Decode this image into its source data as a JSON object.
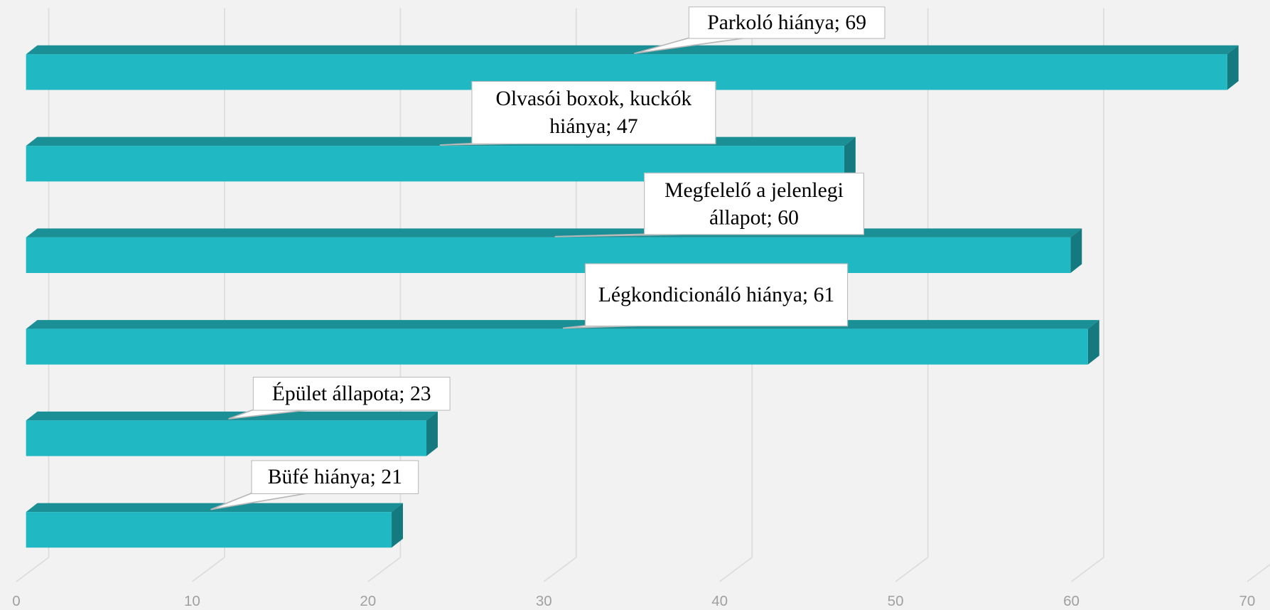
{
  "chart_data": {
    "type": "bar3d_horizontal",
    "values": [
      69,
      47,
      60,
      61,
      23,
      21
    ],
    "value_labels": [
      "Parkoló hiánya; 69",
      "Olvasói boxok, kuckók hiánya; 47",
      "Megfelelő a jelenlegi állapot; 60",
      "Légkondicionáló hiánya; 61",
      "Épület állapota; 23",
      "Büfé hiánya; 21"
    ],
    "color": "#20b8c2",
    "xlim": [
      0,
      70
    ],
    "xticks": [
      0,
      10,
      20,
      30,
      40,
      50,
      60,
      70
    ],
    "grid": true
  }
}
